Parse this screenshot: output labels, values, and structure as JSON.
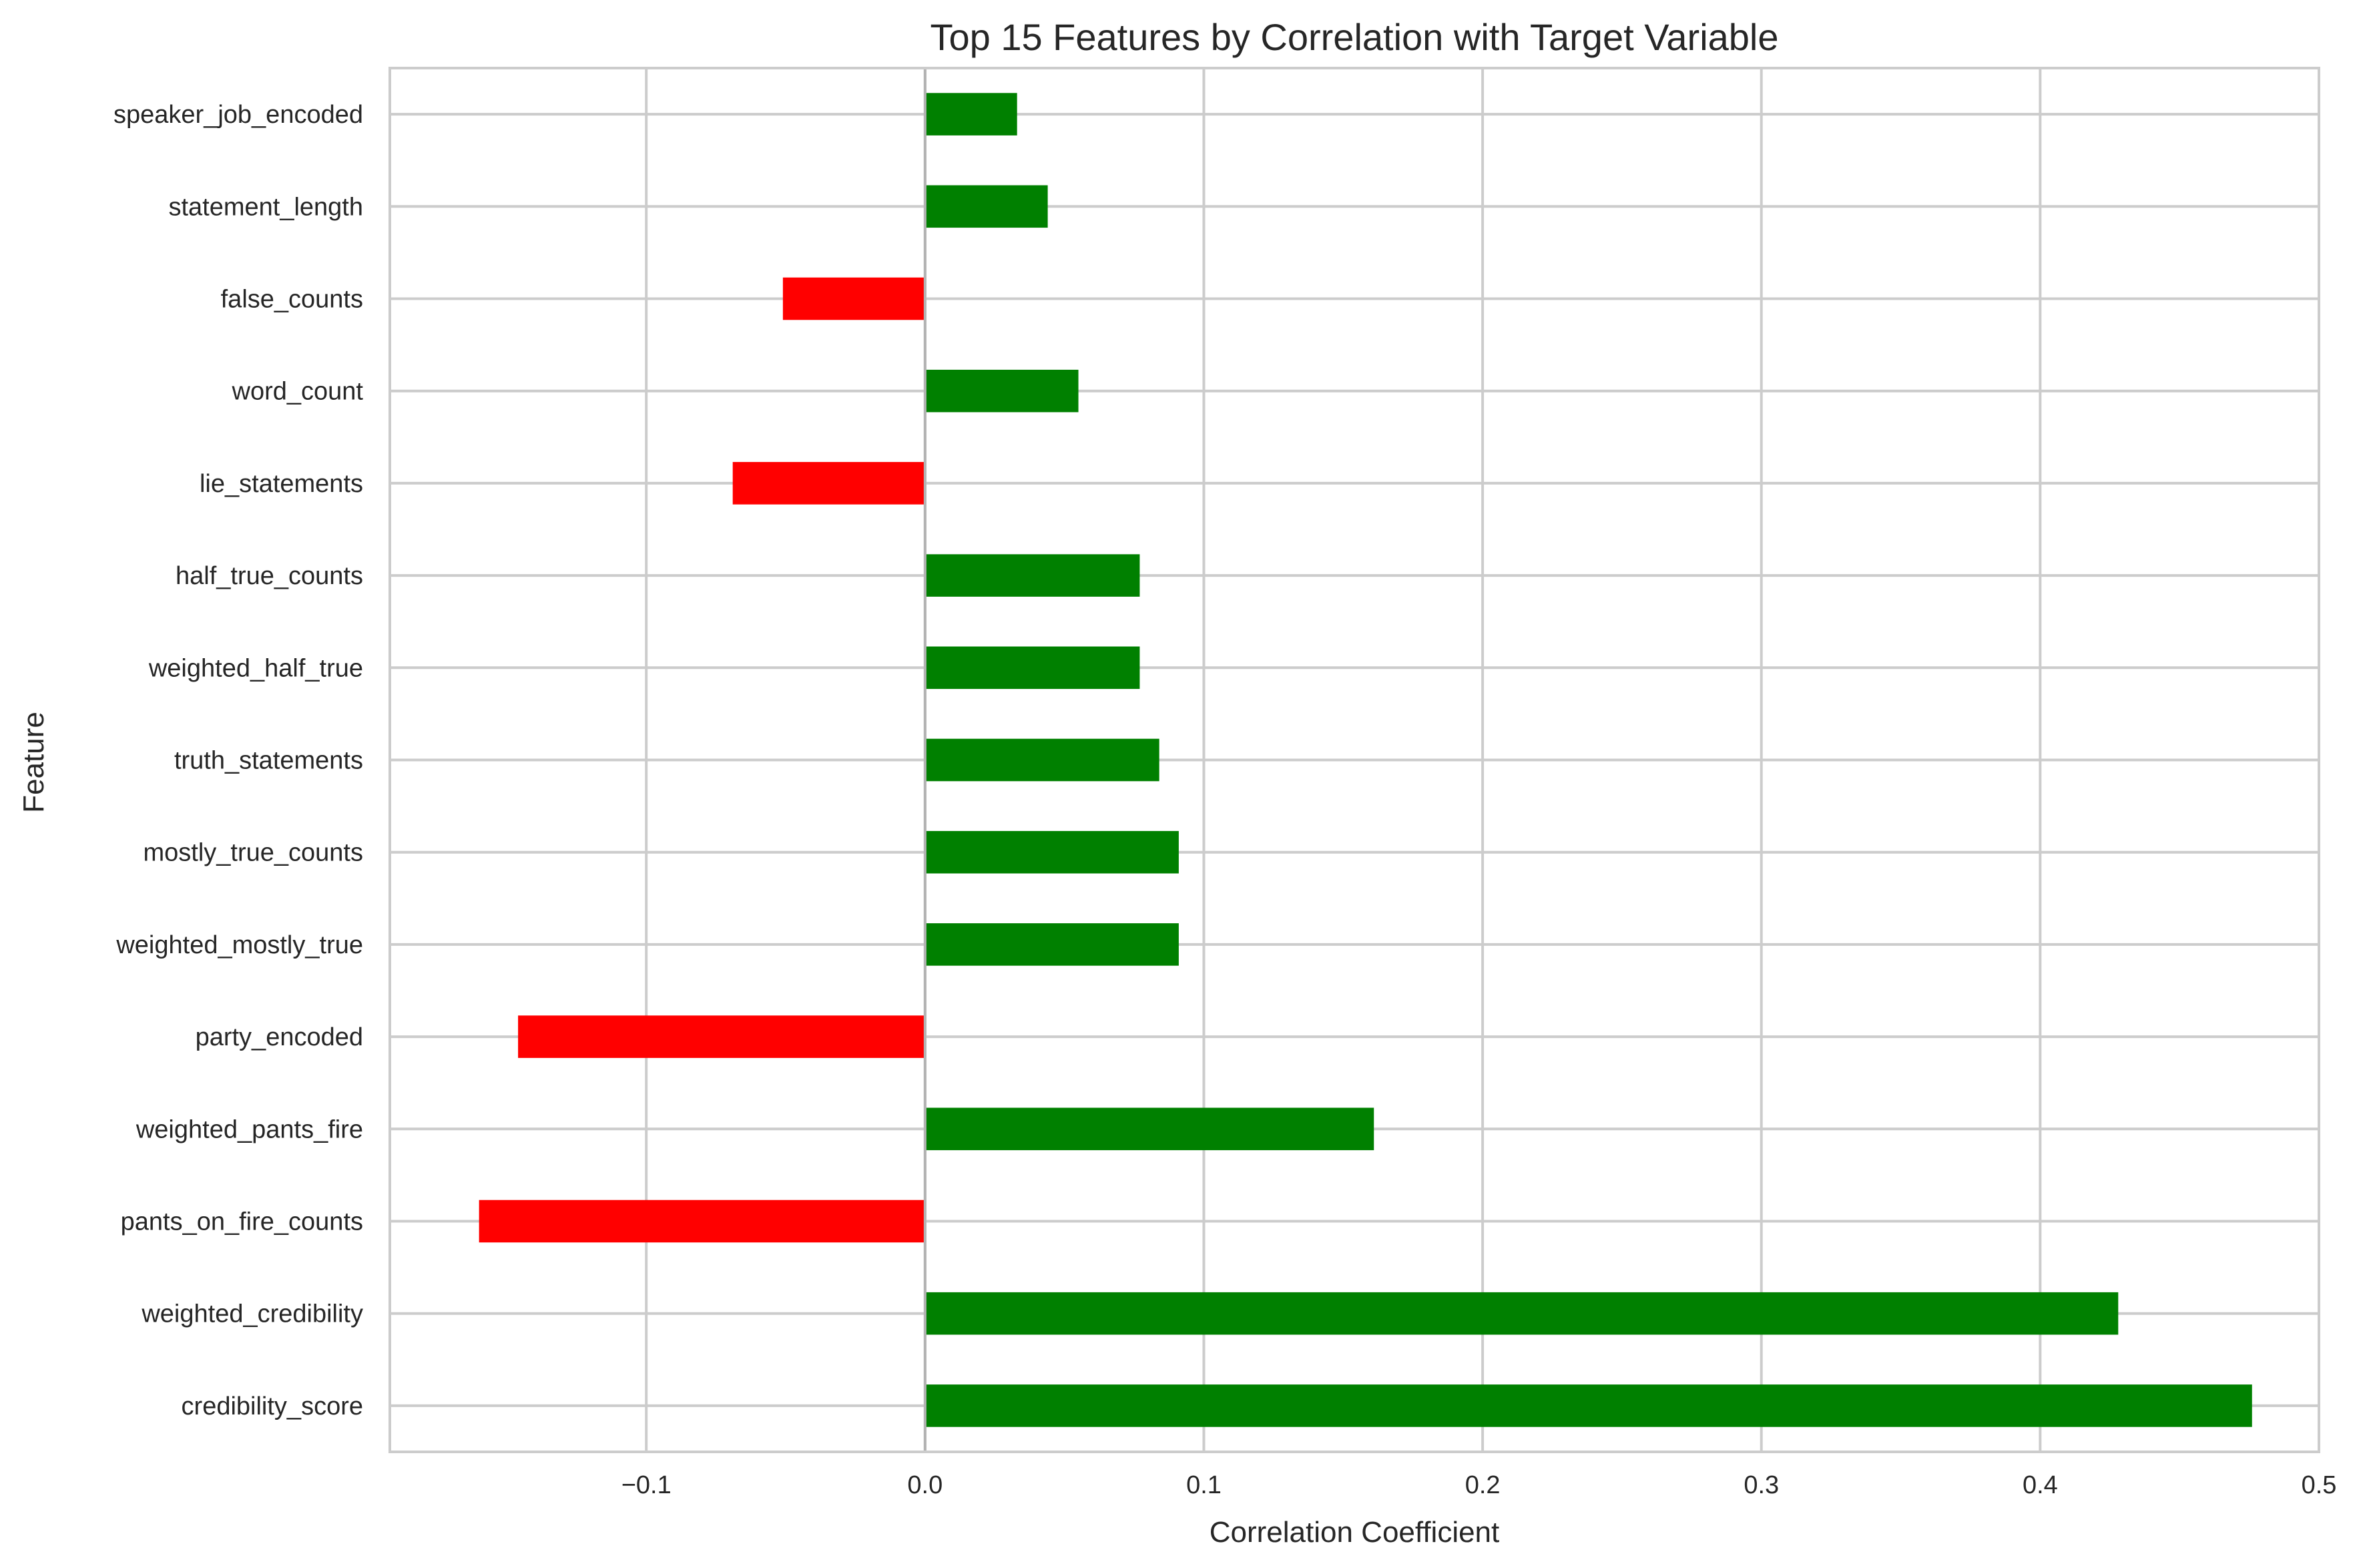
{
  "chart_data": {
    "type": "bar",
    "orientation": "horizontal",
    "title": "Top 15 Features by Correlation with Target Variable",
    "xlabel": "Correlation Coefficient",
    "ylabel": "Feature",
    "xlim": [
      -0.192,
      0.5
    ],
    "xticks": [
      -0.1,
      0.0,
      0.1,
      0.2,
      0.3,
      0.4,
      0.5
    ],
    "xtick_labels": [
      "−0.1",
      "0.0",
      "0.1",
      "0.2",
      "0.3",
      "0.4",
      "0.5"
    ],
    "grid": true,
    "legend": "none",
    "colors": {
      "positive": "#008000",
      "negative": "#ff0000"
    },
    "categories": [
      "speaker_job_encoded",
      "statement_length",
      "false_counts",
      "word_count",
      "lie_statements",
      "half_true_counts",
      "weighted_half_true",
      "truth_statements",
      "mostly_true_counts",
      "weighted_mostly_true",
      "party_encoded",
      "weighted_pants_fire",
      "pants_on_fire_counts",
      "weighted_credibility",
      "credibility_score"
    ],
    "values": [
      0.033,
      0.044,
      -0.051,
      0.055,
      -0.069,
      0.077,
      0.077,
      0.084,
      0.091,
      0.091,
      -0.146,
      0.161,
      -0.16,
      0.428,
      0.476
    ]
  }
}
